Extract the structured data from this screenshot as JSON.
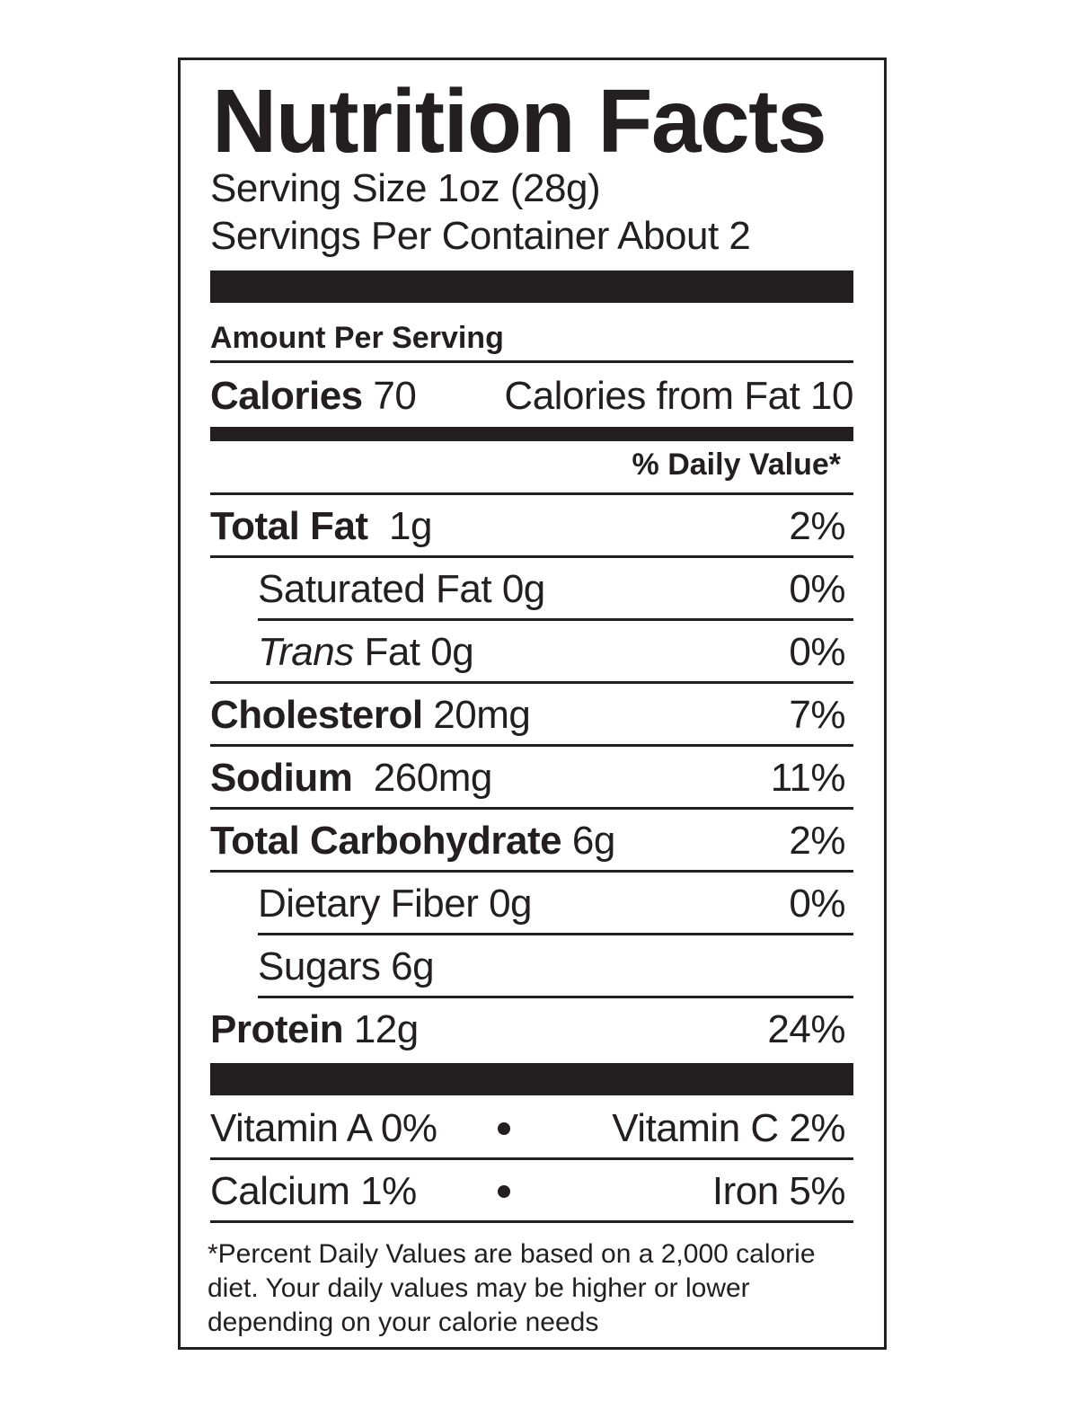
{
  "title": "Nutrition Facts",
  "serving_size": "Serving Size 1oz (28g)",
  "servings_per_container": "Servings Per Container About 2",
  "amount_per_serving": "Amount Per Serving",
  "calories": {
    "label": "Calories",
    "value": "70",
    "from_fat": "Calories from Fat 10"
  },
  "daily_value_header": "% Daily Value*",
  "nutrients": [
    {
      "name": "Total Fat",
      "amount": "1g",
      "dv": "2%"
    },
    {
      "name": "Saturated Fat 0g",
      "dv": "0%"
    },
    {
      "name_italic": "Trans",
      "name": " Fat 0g",
      "dv": "0%"
    },
    {
      "name": "Cholesterol",
      "amount": "20mg",
      "dv": "7%"
    },
    {
      "name": "Sodium",
      "amount": "260mg",
      "dv": "11%"
    },
    {
      "name": "Total Carbohydrate",
      "amount": "6g",
      "dv": "2%"
    },
    {
      "name": "Dietary Fiber 0g",
      "dv": "0%"
    },
    {
      "name": "Sugars 6g"
    },
    {
      "name": "Protein",
      "amount": "12g",
      "dv": "24%"
    }
  ],
  "vitamins": [
    {
      "left": "Vitamin A 0%",
      "right": "Vitamin C 2%"
    },
    {
      "left": "Calcium 1%",
      "right": "Iron 5%"
    }
  ],
  "footnote": [
    "*Percent Daily Values are based on a 2,000 calorie",
    "diet. Your daily values may be higher or lower",
    "depending on your calorie needs"
  ]
}
